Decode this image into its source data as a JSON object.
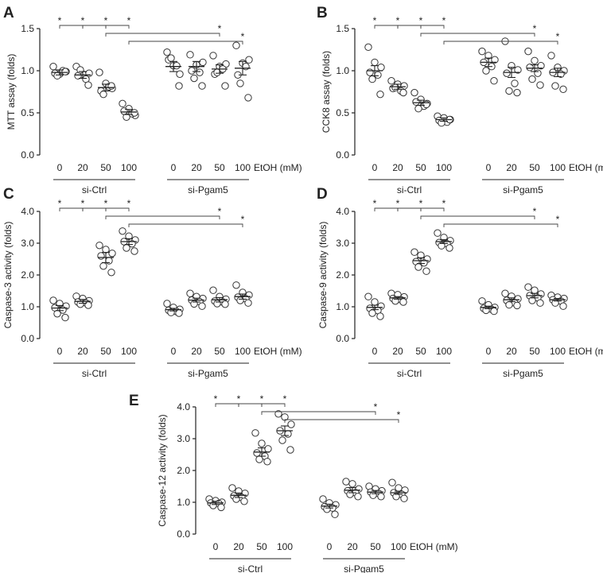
{
  "chart_data": [
    {
      "type": "scatter",
      "panel": "A",
      "title": "",
      "ylabel": "MTT assay (folds)",
      "xlabel": "EtOH (mM)",
      "categories": [
        "0",
        "20",
        "50",
        "100",
        "0",
        "20",
        "50",
        "100"
      ],
      "groups": [
        "si-Ctrl",
        "si-Pgam5"
      ],
      "ylim": [
        0.0,
        1.5
      ],
      "yticks": [
        "0.0",
        "0.5",
        "1.0",
        "1.5"
      ],
      "means": [
        0.98,
        0.95,
        0.8,
        0.51,
        1.05,
        1.05,
        1.02,
        1.03
      ],
      "sems": [
        0.03,
        0.04,
        0.04,
        0.03,
        0.06,
        0.06,
        0.05,
        0.08
      ],
      "points": [
        [
          1.05,
          0.96,
          0.99,
          0.97,
          1.0,
          0.94,
          0.99
        ],
        [
          1.05,
          0.96,
          0.97,
          0.94,
          0.9,
          1.01,
          0.83
        ],
        [
          0.98,
          0.85,
          0.79,
          0.76,
          0.81,
          0.72,
          0.82
        ],
        [
          0.61,
          0.55,
          0.47,
          0.52,
          0.49,
          0.45,
          0.5
        ],
        [
          1.22,
          1.06,
          0.96,
          1.13,
          1.06,
          1.15,
          0.82
        ],
        [
          1.19,
          1.07,
          1.1,
          1.0,
          0.98,
          0.91,
          0.82
        ],
        [
          1.18,
          1.05,
          1.08,
          0.96,
          1.02,
          0.98,
          0.82
        ],
        [
          1.3,
          1.09,
          1.13,
          0.95,
          1.05,
          0.85,
          0.68
        ]
      ],
      "comparisons": [
        {
          "from": 0,
          "to": 1,
          "label": "*"
        },
        {
          "from": 1,
          "to": 2,
          "label": "*"
        },
        {
          "from": 2,
          "to": 3,
          "label": "*"
        },
        {
          "from": 2,
          "to": 6,
          "label": "*"
        },
        {
          "from": 3,
          "to": 7,
          "label": "*"
        }
      ]
    },
    {
      "type": "scatter",
      "panel": "B",
      "title": "",
      "ylabel": "CCK8 assay (folds)",
      "xlabel": "EtOH (mM)",
      "categories": [
        "0",
        "20",
        "50",
        "100",
        "0",
        "20",
        "50",
        "100"
      ],
      "groups": [
        "si-Ctrl",
        "si-Pgam5"
      ],
      "ylim": [
        0.0,
        1.5
      ],
      "yticks": [
        "0.0",
        "0.5",
        "1.0",
        "1.5"
      ],
      "means": [
        1.0,
        0.81,
        0.62,
        0.42,
        1.1,
        0.98,
        1.03,
        0.98
      ],
      "sems": [
        0.06,
        0.03,
        0.03,
        0.02,
        0.05,
        0.06,
        0.04,
        0.05
      ],
      "points": [
        [
          1.28,
          1.1,
          1.04,
          0.98,
          0.95,
          0.9,
          0.72
        ],
        [
          0.88,
          0.84,
          0.82,
          0.79,
          0.76,
          0.8,
          0.74
        ],
        [
          0.74,
          0.66,
          0.61,
          0.63,
          0.58,
          0.55,
          0.6
        ],
        [
          0.46,
          0.44,
          0.42,
          0.41,
          0.39,
          0.38,
          0.42
        ],
        [
          1.23,
          1.18,
          1.13,
          1.1,
          1.05,
          1.0,
          0.88
        ],
        [
          1.35,
          1.06,
          1.01,
          0.97,
          0.85,
          0.76,
          0.74
        ],
        [
          1.23,
          1.12,
          1.06,
          1.04,
          0.97,
          0.9,
          0.83
        ],
        [
          1.18,
          1.04,
          1.0,
          0.98,
          0.96,
          0.82,
          0.78
        ]
      ],
      "comparisons": [
        {
          "from": 0,
          "to": 1,
          "label": "*"
        },
        {
          "from": 1,
          "to": 2,
          "label": "*"
        },
        {
          "from": 2,
          "to": 3,
          "label": "*"
        },
        {
          "from": 2,
          "to": 6,
          "label": "*"
        },
        {
          "from": 3,
          "to": 7,
          "label": "*"
        }
      ]
    },
    {
      "type": "scatter",
      "panel": "C",
      "title": "",
      "ylabel": "Caspase-3 activity (folds)",
      "xlabel": "EtOH (mM)",
      "categories": [
        "0",
        "20",
        "50",
        "100",
        "0",
        "20",
        "50",
        "100"
      ],
      "groups": [
        "si-Ctrl",
        "si-Pgam5"
      ],
      "ylim": [
        0.0,
        4.0
      ],
      "yticks": [
        "0.0",
        "1.0",
        "2.0",
        "3.0",
        "4.0"
      ],
      "means": [
        0.96,
        1.17,
        2.55,
        3.05,
        0.91,
        1.21,
        1.22,
        1.32
      ],
      "sems": [
        0.08,
        0.06,
        0.16,
        0.09,
        0.04,
        0.06,
        0.07,
        0.08
      ],
      "points": [
        [
          1.2,
          1.1,
          1.02,
          0.97,
          0.9,
          0.78,
          0.66
        ],
        [
          1.33,
          1.26,
          1.19,
          1.15,
          1.12,
          1.08,
          1.05
        ],
        [
          2.93,
          2.8,
          2.68,
          2.6,
          2.45,
          2.28,
          2.08
        ],
        [
          3.38,
          3.22,
          3.1,
          3.05,
          2.98,
          2.85,
          2.75
        ],
        [
          1.1,
          0.98,
          0.92,
          0.89,
          0.85,
          0.82,
          0.8
        ],
        [
          1.42,
          1.32,
          1.26,
          1.21,
          1.16,
          1.09,
          1.02
        ],
        [
          1.52,
          1.32,
          1.24,
          1.18,
          1.15,
          1.1,
          1.08
        ],
        [
          1.68,
          1.45,
          1.37,
          1.3,
          1.25,
          1.2,
          1.12
        ]
      ],
      "comparisons": [
        {
          "from": 0,
          "to": 1,
          "label": "*"
        },
        {
          "from": 1,
          "to": 2,
          "label": "*"
        },
        {
          "from": 2,
          "to": 3,
          "label": "*"
        },
        {
          "from": 2,
          "to": 6,
          "label": "*"
        },
        {
          "from": 3,
          "to": 7,
          "label": "*"
        }
      ]
    },
    {
      "type": "scatter",
      "panel": "D",
      "title": "",
      "ylabel": "Caspase-9 activity (folds)",
      "xlabel": "EtOH (mM)",
      "categories": [
        "0",
        "20",
        "50",
        "100",
        "0",
        "20",
        "50",
        "100"
      ],
      "groups": [
        "si-Ctrl",
        "si-Pgam5"
      ],
      "ylim": [
        0.0,
        4.0
      ],
      "yticks": [
        "0.0",
        "1.0",
        "2.0",
        "3.0",
        "4.0"
      ],
      "means": [
        0.98,
        1.28,
        2.45,
        3.05,
        0.98,
        1.22,
        1.35,
        1.22
      ],
      "sems": [
        0.07,
        0.04,
        0.09,
        0.06,
        0.04,
        0.06,
        0.07,
        0.04
      ],
      "points": [
        [
          1.32,
          1.15,
          1.02,
          0.95,
          0.88,
          0.8,
          0.7
        ],
        [
          1.42,
          1.38,
          1.31,
          1.26,
          1.22,
          1.18,
          1.15
        ],
        [
          2.72,
          2.62,
          2.5,
          2.42,
          2.38,
          2.25,
          2.12
        ],
        [
          3.32,
          3.18,
          3.08,
          3.02,
          2.98,
          2.92,
          2.85
        ],
        [
          1.18,
          1.06,
          0.98,
          0.95,
          0.92,
          0.89,
          0.86
        ],
        [
          1.42,
          1.33,
          1.25,
          1.2,
          1.12,
          1.06,
          1.04
        ],
        [
          1.62,
          1.52,
          1.4,
          1.35,
          1.28,
          1.2,
          1.12
        ],
        [
          1.36,
          1.3,
          1.26,
          1.22,
          1.18,
          1.12,
          1.02
        ]
      ],
      "comparisons": [
        {
          "from": 0,
          "to": 1,
          "label": "*"
        },
        {
          "from": 1,
          "to": 2,
          "label": "*"
        },
        {
          "from": 2,
          "to": 3,
          "label": "*"
        },
        {
          "from": 2,
          "to": 6,
          "label": "*"
        },
        {
          "from": 3,
          "to": 7,
          "label": "*"
        }
      ]
    },
    {
      "type": "scatter",
      "panel": "E",
      "title": "",
      "ylabel": "Caspase-12 activity (folds)",
      "xlabel": "EtOH (mM)",
      "categories": [
        "0",
        "20",
        "50",
        "100",
        "0",
        "20",
        "50",
        "100"
      ],
      "groups": [
        "si-Ctrl",
        "si-Pgam5"
      ],
      "ylim": [
        0.0,
        4.0
      ],
      "yticks": [
        "0.0",
        "1.0",
        "2.0",
        "3.0",
        "4.0"
      ],
      "means": [
        0.98,
        1.22,
        2.58,
        3.25,
        0.88,
        1.38,
        1.32,
        1.3
      ],
      "sems": [
        0.05,
        0.07,
        0.13,
        0.15,
        0.06,
        0.08,
        0.05,
        0.05
      ],
      "points": [
        [
          1.1,
          1.05,
          1.0,
          0.98,
          0.96,
          0.9,
          0.84
        ],
        [
          1.45,
          1.35,
          1.28,
          1.2,
          1.15,
          1.1,
          1.03
        ],
        [
          3.18,
          2.85,
          2.68,
          2.55,
          2.45,
          2.35,
          2.28
        ],
        [
          3.78,
          3.68,
          3.45,
          3.25,
          3.15,
          2.95,
          2.65
        ],
        [
          1.1,
          0.98,
          0.92,
          0.86,
          0.82,
          0.78,
          0.62
        ],
        [
          1.65,
          1.58,
          1.42,
          1.36,
          1.3,
          1.25,
          1.18
        ],
        [
          1.5,
          1.42,
          1.36,
          1.32,
          1.28,
          1.22,
          1.18
        ],
        [
          1.62,
          1.45,
          1.38,
          1.3,
          1.25,
          1.18,
          1.12
        ]
      ],
      "comparisons": [
        {
          "from": 0,
          "to": 1,
          "label": "*"
        },
        {
          "from": 1,
          "to": 2,
          "label": "*"
        },
        {
          "from": 2,
          "to": 3,
          "label": "*"
        },
        {
          "from": 2,
          "to": 6,
          "label": "*"
        },
        {
          "from": 3,
          "to": 7,
          "label": "*"
        }
      ]
    }
  ]
}
